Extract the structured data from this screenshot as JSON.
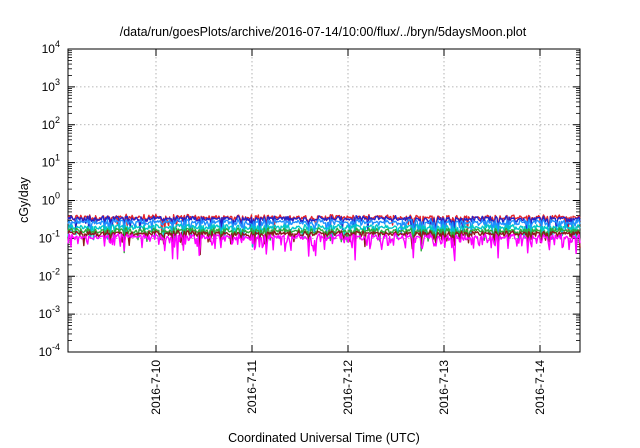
{
  "chart_data": {
    "type": "line",
    "title": "/data/run/goesPlots/archive/2016-07-14/10:00/flux/../bryn/5daysMoon.plot",
    "xlabel": "Coordinated Universal Time (UTC)",
    "ylabel": "cGy/day",
    "yscale": "log",
    "ylim": [
      0.0001,
      10000
    ],
    "xlim": [
      "2016-07-09 02:00",
      "2016-07-14 10:00"
    ],
    "grid": true,
    "legend": "none",
    "y_ticks": [
      {
        "base": "10",
        "exp": "-4"
      },
      {
        "base": "10",
        "exp": "-3"
      },
      {
        "base": "10",
        "exp": "-2"
      },
      {
        "base": "10",
        "exp": "-1"
      },
      {
        "base": "10",
        "exp": "0"
      },
      {
        "base": "10",
        "exp": "1"
      },
      {
        "base": "10",
        "exp": "2"
      },
      {
        "base": "10",
        "exp": "3"
      },
      {
        "base": "10",
        "exp": "4"
      }
    ],
    "x_ticks": [
      "2016-7-10",
      "2016-7-11",
      "2016-7-12",
      "2016-7-13",
      "2016-7-14"
    ],
    "series": [
      {
        "color": "#e3242b",
        "level": 0.36,
        "noise": 0.08,
        "dips": 0.06
      },
      {
        "color": "#2323c8",
        "level": 0.33,
        "noise": 0.08,
        "dips": 0.07
      },
      {
        "color": "#1e90ff",
        "level": 0.27,
        "noise": 0.08,
        "dips": 0.09
      },
      {
        "color": "#00c8c8",
        "level": 0.2,
        "noise": 0.07,
        "dips": 0.08
      },
      {
        "color": "#2eaa3c",
        "level": 0.16,
        "noise": 0.07,
        "dips": 0.06
      },
      {
        "color": "#8b1a1a",
        "level": 0.135,
        "noise": 0.07,
        "dips": 0.05
      },
      {
        "color": "#ff00ff",
        "level": 0.11,
        "noise": 0.1,
        "dips": 0.22
      }
    ]
  }
}
